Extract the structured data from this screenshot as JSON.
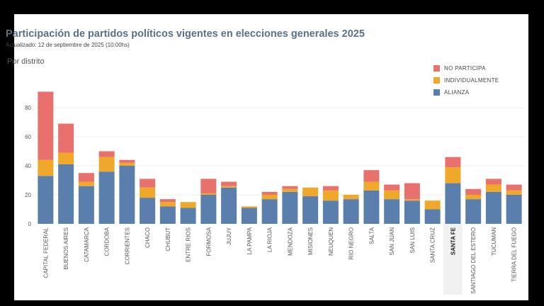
{
  "chart_data": {
    "type": "bar",
    "stacked": true,
    "title": "Participación de partidos políticos vigentes en elecciones generales 2025",
    "subtitle": "Actualizado: 12 de septiembre de 2025 (10:00hs)",
    "section_label": "Por distrito",
    "categories": [
      "CAPITAL FEDERAL",
      "BUENOS AIRES",
      "CATAMARCA",
      "CORDOBA",
      "CORRIENTES",
      "CHACO",
      "CHUBUT",
      "ENTRE RIOS",
      "FORMOSA",
      "JUJUY",
      "LA PAMPA",
      "LA RIOJA",
      "MENDOZA",
      "MISIONES",
      "NEUQUEN",
      "RIO NEGRO",
      "SALTA",
      "SAN JUAN",
      "SAN LUIS",
      "SANTA CRUZ",
      "SANTA FE",
      "SANTIAGO DEL ESTERO",
      "TUCUMAN",
      "TIERRA DEL FUEGO"
    ],
    "highlighted_category": "SANTA FE",
    "series": [
      {
        "name": "ALIANZA",
        "color": "#5b7fad",
        "values": [
          33,
          41,
          26,
          36,
          40,
          18,
          12,
          11,
          20,
          25,
          11,
          17,
          22,
          19,
          16,
          17,
          23,
          17,
          16,
          10,
          28,
          17,
          22,
          20
        ]
      },
      {
        "name": "INDIVIDUALMENTE",
        "color": "#f0a82a",
        "values": [
          11,
          8,
          3,
          10,
          2,
          7,
          3,
          4,
          1,
          1,
          1,
          3,
          2,
          6,
          7,
          3,
          6,
          6,
          1,
          6,
          11,
          3,
          5,
          3
        ]
      },
      {
        "name": "NO PARTICIPA",
        "color": "#e8716e",
        "values": [
          47,
          20,
          6,
          4,
          2,
          6,
          2,
          0,
          10,
          3,
          0,
          2,
          2,
          0,
          3,
          0,
          8,
          4,
          11,
          0,
          7,
          4,
          4,
          4
        ]
      }
    ],
    "legend_order": [
      "NO PARTICIPA",
      "INDIVIDUALMENTE",
      "ALIANZA"
    ],
    "legend_position": "top-right",
    "yticks": [
      0,
      20,
      40,
      60,
      80
    ],
    "ylim": [
      0,
      95
    ],
    "grid": true
  }
}
